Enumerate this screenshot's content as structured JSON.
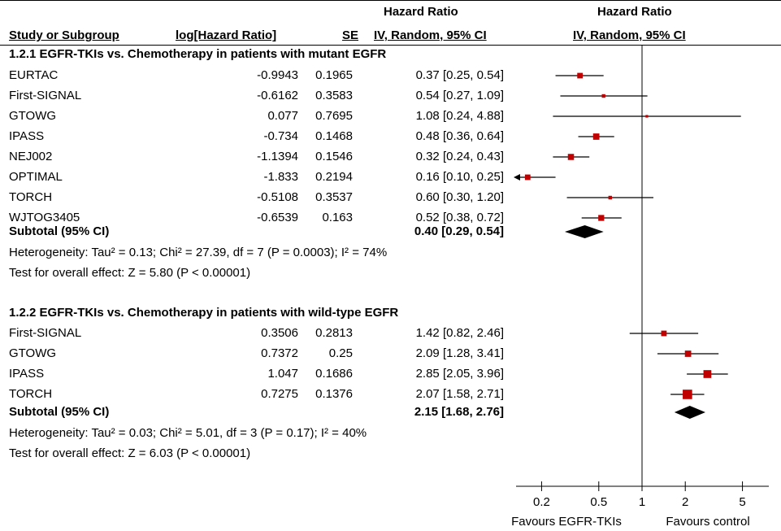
{
  "header": {
    "hr_title_left": "Hazard Ratio",
    "hr_title_right": "Hazard Ratio",
    "col_study": "Study or Subgroup",
    "col_loghr": "log[Hazard Ratio]",
    "col_se": "SE",
    "col_ci_left": "IV, Random, 95% CI",
    "col_ci_right": "IV, Random, 95% CI"
  },
  "subgroups": [
    {
      "title": "1.2.1 EGFR-TKIs vs. Chemotherapy in patients with mutant EGFR",
      "studies": [
        {
          "name": "EURTAC",
          "loghr": "-0.9943",
          "se": "0.1965",
          "ci": "0.37 [0.25, 0.54]"
        },
        {
          "name": "First-SIGNAL",
          "loghr": "-0.6162",
          "se": "0.3583",
          "ci": "0.54 [0.27, 1.09]"
        },
        {
          "name": "GTOWG",
          "loghr": "0.077",
          "se": "0.7695",
          "ci": "1.08 [0.24, 4.88]"
        },
        {
          "name": "IPASS",
          "loghr": "-0.734",
          "se": "0.1468",
          "ci": "0.48 [0.36, 0.64]"
        },
        {
          "name": "NEJ002",
          "loghr": "-1.1394",
          "se": "0.1546",
          "ci": "0.32 [0.24, 0.43]"
        },
        {
          "name": "OPTIMAL",
          "loghr": "-1.833",
          "se": "0.2194",
          "ci": "0.16 [0.10, 0.25]"
        },
        {
          "name": "TORCH",
          "loghr": "-0.5108",
          "se": "0.3537",
          "ci": "0.60 [0.30, 1.20]"
        },
        {
          "name": "WJTOG3405",
          "loghr": "-0.6539",
          "se": "0.163",
          "ci": "0.52 [0.38, 0.72]"
        }
      ],
      "subtotal_label": "Subtotal (95% CI)",
      "subtotal_ci": "0.40 [0.29, 0.54]",
      "heterogeneity": "Heterogeneity: Tau² = 0.13; Chi² = 27.39, df = 7 (P = 0.0003); I² = 74%",
      "overall": "Test for overall effect: Z = 5.80 (P < 0.00001)"
    },
    {
      "title": "1.2.2 EGFR-TKIs vs. Chemotherapy in patients with wild-type EGFR",
      "studies": [
        {
          "name": "First-SIGNAL",
          "loghr": "0.3506",
          "se": "0.2813",
          "ci": "1.42 [0.82, 2.46]"
        },
        {
          "name": "GTOWG",
          "loghr": "0.7372",
          "se": "0.25",
          "ci": "2.09 [1.28, 3.41]"
        },
        {
          "name": "IPASS",
          "loghr": "1.047",
          "se": "0.1686",
          "ci": "2.85 [2.05, 3.96]"
        },
        {
          "name": "TORCH",
          "loghr": "0.7275",
          "se": "0.1376",
          "ci": "2.07 [1.58, 2.71]"
        }
      ],
      "subtotal_label": "Subtotal (95% CI)",
      "subtotal_ci": "2.15 [1.68, 2.76]",
      "heterogeneity": "Heterogeneity: Tau² = 0.03; Chi² = 5.01, df = 3 (P = 0.17); I² = 40%",
      "overall": "Test for overall effect: Z = 6.03 (P < 0.00001)"
    }
  ],
  "axis": {
    "favours_left": "Favours EGFR-TKIs",
    "favours_right": "Favours control"
  },
  "chart_data": {
    "type": "forest",
    "scale": "log",
    "xlim": [
      0.1,
      7
    ],
    "reference_line": 1,
    "ticks": [
      0.2,
      0.5,
      1,
      2,
      5
    ],
    "tick_labels": [
      "0.2",
      "0.5",
      "1",
      "2",
      "5"
    ],
    "colors": {
      "marker": "#c00000",
      "diamond": "#000000",
      "line": "#000000"
    },
    "series": [
      {
        "name": "1.2.1 EGFR-TKIs vs. Chemotherapy in patients with mutant EGFR",
        "points": [
          {
            "study": "EURTAC",
            "hr": 0.37,
            "lo": 0.25,
            "hi": 0.54,
            "weight": 2
          },
          {
            "study": "First-SIGNAL",
            "hr": 0.54,
            "lo": 0.27,
            "hi": 1.09,
            "weight": 1
          },
          {
            "study": "GTOWG",
            "hr": 1.08,
            "lo": 0.24,
            "hi": 4.88,
            "weight": 0.5
          },
          {
            "study": "IPASS",
            "hr": 0.48,
            "lo": 0.36,
            "hi": 0.64,
            "weight": 2.4
          },
          {
            "study": "NEJ002",
            "hr": 0.32,
            "lo": 0.24,
            "hi": 0.43,
            "weight": 2.3
          },
          {
            "study": "OPTIMAL",
            "hr": 0.16,
            "lo": 0.1,
            "hi": 0.25,
            "weight": 2,
            "arrow_left": true
          },
          {
            "study": "TORCH",
            "hr": 0.6,
            "lo": 0.3,
            "hi": 1.2,
            "weight": 1
          },
          {
            "study": "WJTOG3405",
            "hr": 0.52,
            "lo": 0.38,
            "hi": 0.72,
            "weight": 2.2
          }
        ],
        "subtotal": {
          "hr": 0.4,
          "lo": 0.29,
          "hi": 0.54
        }
      },
      {
        "name": "1.2.2 EGFR-TKIs vs. Chemotherapy in patients with wild-type EGFR",
        "points": [
          {
            "study": "First-SIGNAL",
            "hr": 1.42,
            "lo": 0.82,
            "hi": 2.46,
            "weight": 2
          },
          {
            "study": "GTOWG",
            "hr": 2.09,
            "lo": 1.28,
            "hi": 3.41,
            "weight": 2.4
          },
          {
            "study": "IPASS",
            "hr": 2.85,
            "lo": 2.05,
            "hi": 3.96,
            "weight": 3.2
          },
          {
            "study": "TORCH",
            "hr": 2.07,
            "lo": 1.58,
            "hi": 2.71,
            "weight": 4
          }
        ],
        "subtotal": {
          "hr": 2.15,
          "lo": 1.68,
          "hi": 2.76
        }
      }
    ]
  }
}
